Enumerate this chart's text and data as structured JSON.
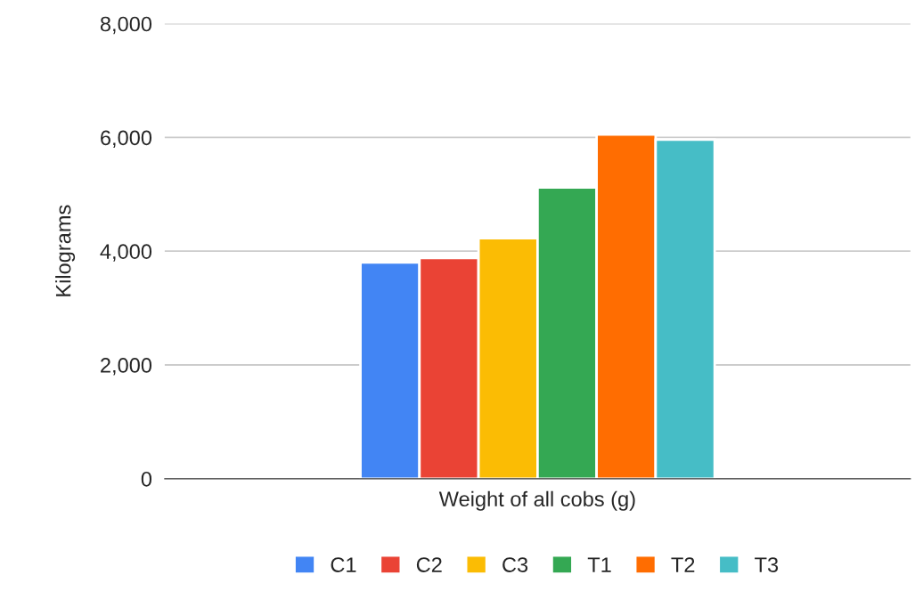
{
  "chart_data": {
    "type": "bar",
    "ylabel": "Kilograms",
    "categories": [
      "Weight of all cobs (g)"
    ],
    "series": [
      {
        "name": "C1",
        "color": "#4285f4",
        "values": [
          3800
        ]
      },
      {
        "name": "C2",
        "color": "#ea4335",
        "values": [
          3880
        ]
      },
      {
        "name": "C3",
        "color": "#fbbc04",
        "values": [
          4230
        ]
      },
      {
        "name": "T1",
        "color": "#34a853",
        "values": [
          5120
        ]
      },
      {
        "name": "T2",
        "color": "#ff6d01",
        "values": [
          6050
        ]
      },
      {
        "name": "T3",
        "color": "#46bdc6",
        "values": [
          5960
        ]
      }
    ],
    "ylim": [
      0,
      8000
    ],
    "yticks": [
      {
        "value": 0,
        "label": "0"
      },
      {
        "value": 2000,
        "label": "2,000"
      },
      {
        "value": 4000,
        "label": "4,000"
      },
      {
        "value": 6000,
        "label": "6,000"
      },
      {
        "value": 8000,
        "label": "8,000"
      }
    ],
    "grid": "y",
    "legend": "bottom"
  }
}
